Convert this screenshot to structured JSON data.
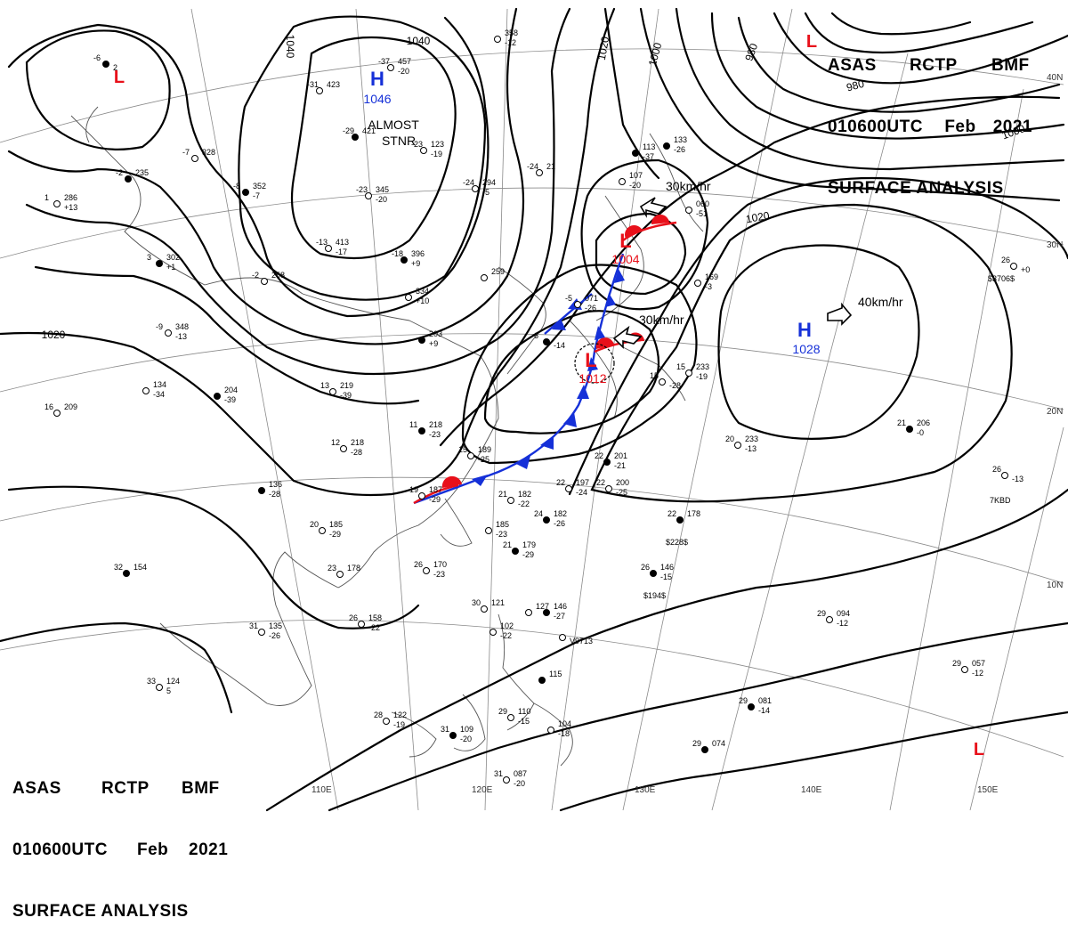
{
  "header": {
    "agency": "ASAS",
    "station": "RCTP",
    "office": "BMF",
    "datetime": "010600UTC",
    "month": "Feb",
    "year": "2021",
    "product": "SURFACE ANALYSIS"
  },
  "colors": {
    "low": "#e8101a",
    "high": "#1530d8",
    "cold_front": "#1530d8",
    "warm_front": "#e8101a",
    "isobar": "#000000",
    "grid": "#888888"
  },
  "pressure_systems": [
    {
      "type": "H",
      "value": "1046",
      "note": "ALMOST STNR"
    },
    {
      "type": "L",
      "value": "1004",
      "motion": "30km/hr"
    },
    {
      "type": "L",
      "value": "1012",
      "motion": "30km/hr"
    },
    {
      "type": "H",
      "value": "1028",
      "motion": "40km/hr"
    },
    {
      "type": "L",
      "value": ""
    },
    {
      "type": "L",
      "value": ""
    },
    {
      "type": "L",
      "value": ""
    }
  ],
  "isobar_labels": [
    "1040",
    "1040",
    "1020",
    "1000",
    "980",
    "980",
    "1000",
    "1020",
    "1020"
  ],
  "longitude_labels": [
    "110E",
    "120E",
    "130E",
    "140E",
    "150E"
  ],
  "latitude_labels": [
    "40N",
    "30N",
    "20N",
    "10N"
  ],
  "stations": [
    {
      "t": "-6",
      "p": "",
      "d": "2"
    },
    {
      "t": "-37",
      "p": "457",
      "d": "-20"
    },
    {
      "t": "-31",
      "p": "423",
      "d": ""
    },
    {
      "t": "-29",
      "p": "421",
      "d": ""
    },
    {
      "t": "-23",
      "p": "123",
      "d": "-19"
    },
    {
      "t": "-7",
      "p": "328",
      "d": ""
    },
    {
      "t": "-8",
      "p": "352",
      "d": "-7"
    },
    {
      "t": "-23",
      "p": "345",
      "d": "-20"
    },
    {
      "t": "-13",
      "p": "413",
      "d": "-17"
    },
    {
      "t": "-18",
      "p": "396",
      "d": "+9"
    },
    {
      "t": "-24",
      "p": "21",
      "d": ""
    },
    {
      "t": "-24",
      "p": "294",
      "d": "-5"
    },
    {
      "t": "3",
      "p": "302",
      "d": "+1"
    },
    {
      "t": "-2",
      "p": "258",
      "d": ""
    },
    {
      "t": "1",
      "p": "286",
      "d": "+13"
    },
    {
      "t": "-2",
      "p": "235",
      "d": ""
    },
    {
      "t": "-9",
      "p": "348",
      "d": "-13"
    },
    {
      "t": "",
      "p": "334",
      "d": "+10"
    },
    {
      "t": "",
      "p": "203",
      "d": "+9"
    },
    {
      "t": "",
      "p": "259",
      "d": ""
    },
    {
      "t": "",
      "p": "358",
      "d": "-12"
    },
    {
      "t": "",
      "p": "113",
      "d": "-37"
    },
    {
      "t": "",
      "p": "107",
      "d": "-20"
    },
    {
      "t": "",
      "p": "060",
      "d": "-51"
    },
    {
      "t": "",
      "p": "133",
      "d": "-26"
    },
    {
      "t": "",
      "p": "169",
      "d": "-3"
    },
    {
      "t": "15",
      "p": "233",
      "d": "-19"
    },
    {
      "t": "6",
      "p": "",
      "d": "-14"
    },
    {
      "t": "-5",
      "p": "071",
      "d": "-26"
    },
    {
      "t": "",
      "p": "134",
      "d": "-34"
    },
    {
      "t": "",
      "p": "204",
      "d": "-39"
    },
    {
      "t": "13",
      "p": "219",
      "d": "-39"
    },
    {
      "t": "16",
      "p": "209",
      "d": ""
    },
    {
      "t": "11",
      "p": "218",
      "d": "-23"
    },
    {
      "t": "12",
      "p": "218",
      "d": "-28"
    },
    {
      "t": "15",
      "p": "189",
      "d": "-25"
    },
    {
      "t": "",
      "p": "136",
      "d": "-28"
    },
    {
      "t": "19",
      "p": "187",
      "d": "-29"
    },
    {
      "t": "21",
      "p": "182",
      "d": "-22"
    },
    {
      "t": "24",
      "p": "182",
      "d": "-26"
    },
    {
      "t": "",
      "p": "185",
      "d": "-23"
    },
    {
      "t": "20",
      "p": "185",
      "d": "-29"
    },
    {
      "t": "21",
      "p": "179",
      "d": "-29"
    },
    {
      "t": "23",
      "p": "178",
      "d": ""
    },
    {
      "t": "26",
      "p": "170",
      "d": "-23"
    },
    {
      "t": "32",
      "p": "154",
      "d": ""
    },
    {
      "t": "26",
      "p": "158",
      "d": "-22"
    },
    {
      "t": "31",
      "p": "135",
      "d": "-26"
    },
    {
      "t": "22",
      "p": "201",
      "d": "-21"
    },
    {
      "t": "22",
      "p": "197",
      "d": "-24"
    },
    {
      "t": "22",
      "p": "200",
      "d": "-25"
    },
    {
      "t": "22",
      "p": "178",
      "d": ""
    },
    {
      "t": "15",
      "p": "",
      "d": "-28"
    },
    {
      "t": "20",
      "p": "233",
      "d": "-13"
    },
    {
      "t": "21",
      "p": "206",
      "d": "-0"
    },
    {
      "t": "26",
      "p": "",
      "d": "+0"
    },
    {
      "t": "26",
      "p": "",
      "d": "-13"
    },
    {
      "t": "26",
      "p": "146",
      "d": "-15"
    },
    {
      "t": "30",
      "p": "121",
      "d": ""
    },
    {
      "t": "",
      "p": "127",
      "d": ""
    },
    {
      "t": "",
      "p": "146",
      "d": "-27"
    },
    {
      "t": "",
      "p": "102",
      "d": "-22"
    },
    {
      "t": "",
      "p": "",
      "d": "V9713"
    },
    {
      "t": "",
      "p": "115",
      "d": ""
    },
    {
      "t": "29",
      "p": "094",
      "d": "-12"
    },
    {
      "t": "29",
      "p": "057",
      "d": "-12"
    },
    {
      "t": "29",
      "p": "081",
      "d": "-14"
    },
    {
      "t": "33",
      "p": "124",
      "d": "5"
    },
    {
      "t": "28",
      "p": "122",
      "d": "-19"
    },
    {
      "t": "31",
      "p": "109",
      "d": "-20"
    },
    {
      "t": "29",
      "p": "110",
      "d": "-15"
    },
    {
      "t": "",
      "p": "104",
      "d": "-18"
    },
    {
      "t": "29",
      "p": "074",
      "d": ""
    },
    {
      "t": "31",
      "p": "087",
      "d": "-20"
    }
  ],
  "ship_ids": [
    "$3706$",
    "$228$",
    "$194$",
    "7KBD"
  ]
}
